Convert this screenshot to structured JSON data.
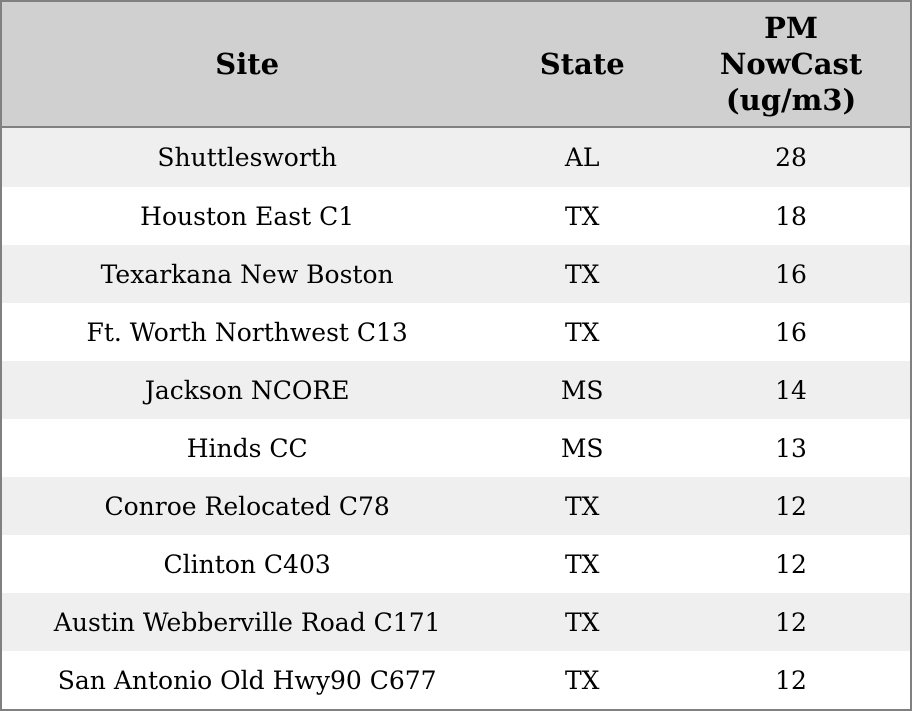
{
  "chart_data": {
    "type": "table",
    "columns": [
      "Site",
      "State",
      "PM NowCast (ug/m3)"
    ],
    "column_header_lines": [
      "Site",
      "State",
      "PM\nNowCast\n(ug/m3)"
    ],
    "rows": [
      {
        "site": "Shuttlesworth",
        "state": "AL",
        "pm_nowcast": 28
      },
      {
        "site": "Houston East C1",
        "state": "TX",
        "pm_nowcast": 18
      },
      {
        "site": "Texarkana New Boston",
        "state": "TX",
        "pm_nowcast": 16
      },
      {
        "site": "Ft. Worth Northwest C13",
        "state": "TX",
        "pm_nowcast": 16
      },
      {
        "site": "Jackson NCORE",
        "state": "MS",
        "pm_nowcast": 14
      },
      {
        "site": "Hinds CC",
        "state": "MS",
        "pm_nowcast": 13
      },
      {
        "site": "Conroe Relocated C78",
        "state": "TX",
        "pm_nowcast": 12
      },
      {
        "site": "Clinton C403",
        "state": "TX",
        "pm_nowcast": 12
      },
      {
        "site": "Austin Webberville Road C171",
        "state": "TX",
        "pm_nowcast": 12
      },
      {
        "site": "San Antonio Old Hwy90 C677",
        "state": "TX",
        "pm_nowcast": 12
      }
    ],
    "layout": {
      "grid": "off",
      "row_striping": "alternating, first data row shaded",
      "alignment": "all columns centered"
    }
  },
  "colors": {
    "header_bg": "#d0d0d0",
    "row_alt_bg": "#efefef",
    "row_bg": "#ffffff",
    "border": "#808080",
    "text": "#000000"
  }
}
